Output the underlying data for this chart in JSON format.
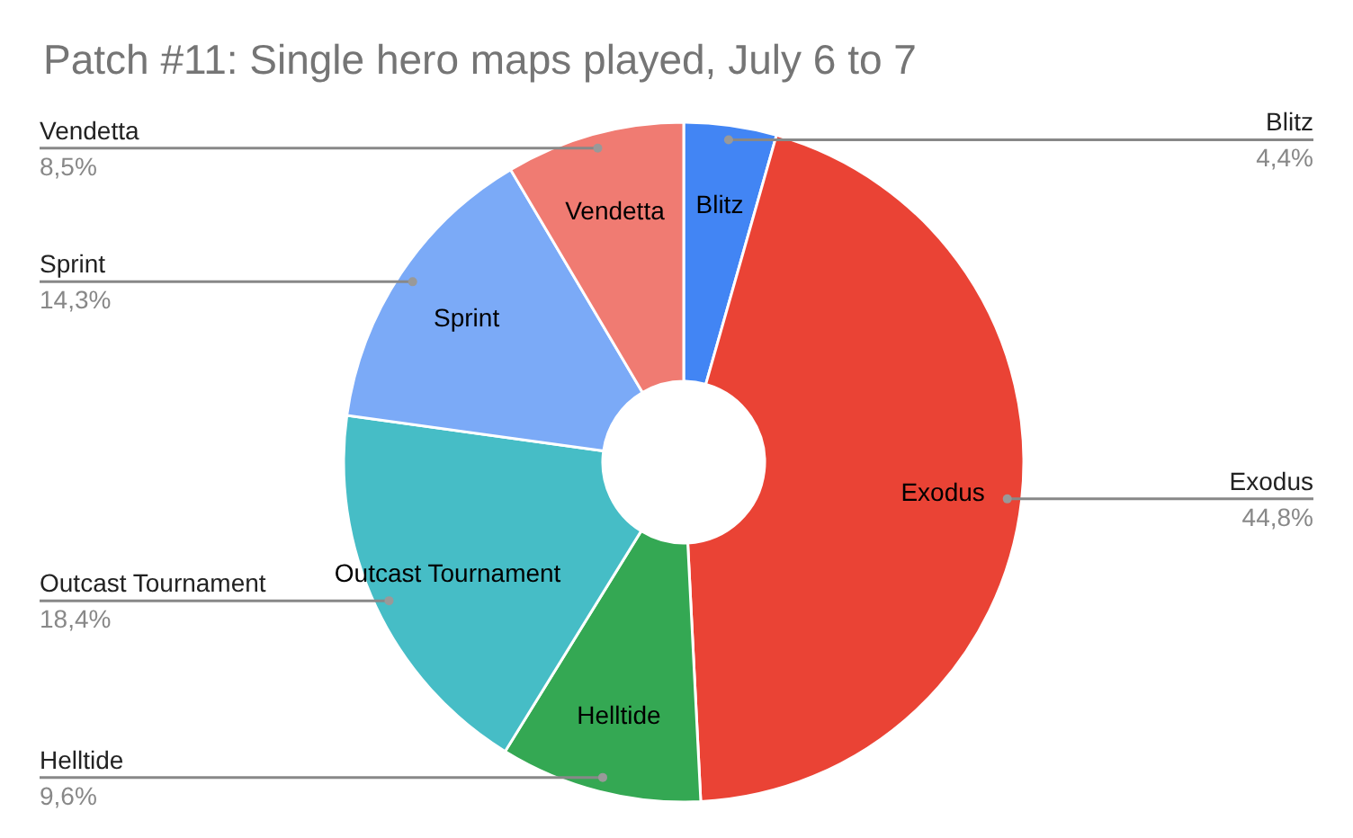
{
  "chart_data": {
    "type": "donut",
    "title": "Patch #11: Single hero maps played, July 6 to 7",
    "categories": [
      "Blitz",
      "Exodus",
      "Helltide",
      "Outcast Tournament",
      "Sprint",
      "Vendetta"
    ],
    "values": [
      4.4,
      44.8,
      9.6,
      18.4,
      14.3,
      8.5
    ],
    "value_labels": [
      "4,4%",
      "44,8%",
      "9,6%",
      "18,4%",
      "14,3%",
      "8,5%"
    ],
    "colors": [
      "#4285f4",
      "#ea4335",
      "#34a853",
      "#46bdc6",
      "#7baaf7",
      "#f07b72"
    ],
    "legend": false
  }
}
